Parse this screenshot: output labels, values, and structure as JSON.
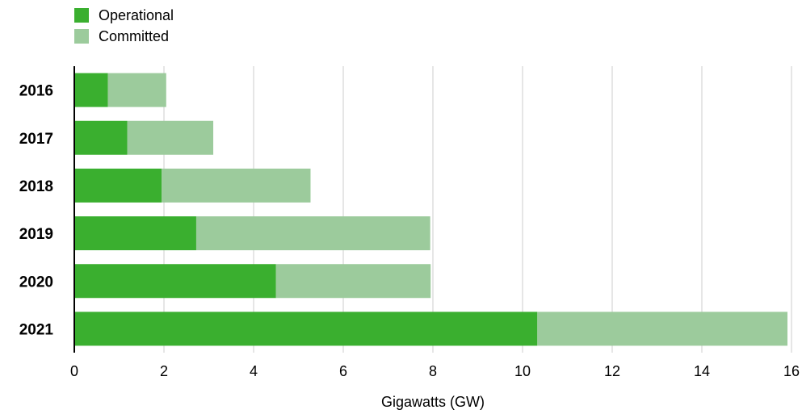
{
  "chart_data": {
    "type": "bar",
    "orientation": "horizontal",
    "stacked": true,
    "categories": [
      "2016",
      "2017",
      "2018",
      "2019",
      "2020",
      "2021"
    ],
    "series": [
      {
        "name": "Operational",
        "color": "#3aaf2f",
        "values": [
          0.75,
          1.18,
          1.95,
          2.72,
          4.5,
          10.33
        ]
      },
      {
        "name": "Committed",
        "color": "#9ccb9c",
        "values": [
          1.3,
          1.92,
          3.32,
          5.22,
          3.45,
          5.58
        ]
      }
    ],
    "xlabel": "Gigawatts (GW)",
    "ylabel": "",
    "title": "",
    "xlim": [
      0,
      16
    ],
    "xticks": [
      0,
      2,
      4,
      6,
      8,
      10,
      12,
      14,
      16
    ],
    "grid": true,
    "legend_position": "top-left"
  }
}
